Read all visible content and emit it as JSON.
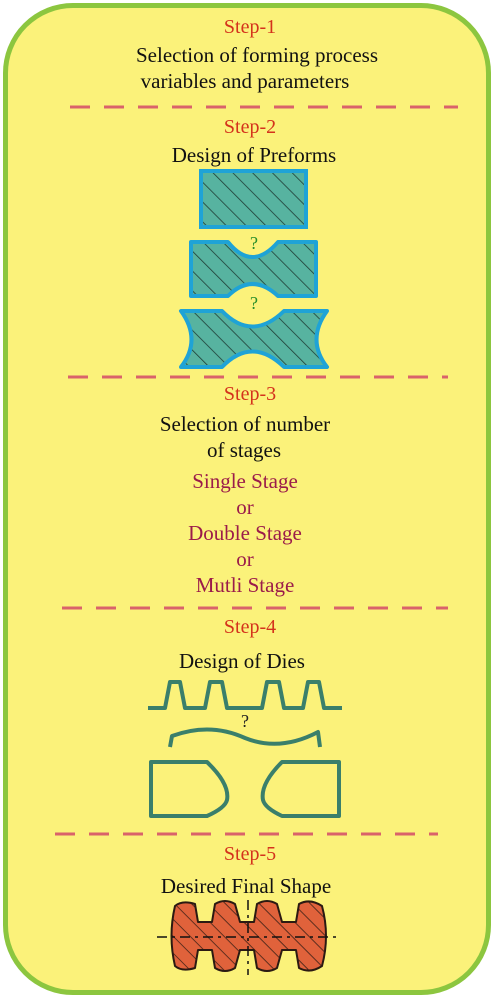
{
  "colors": {
    "panel_fill": "#fbf27a",
    "panel_border": "#8cc63f",
    "step_heading": "#d4321c",
    "option_text": "#9b1b4a",
    "divider": "#d9636a",
    "preform_fill": "#57b3a0",
    "preform_border": "#1fa3d6",
    "die_stroke": "#3a7f6b",
    "final_fill": "#e0623b"
  },
  "steps": [
    {
      "heading": "Step-1",
      "lines": [
        "Selection of forming process",
        "variables and parameters"
      ]
    },
    {
      "heading": "Step-2",
      "lines": [
        "Design of Preforms"
      ],
      "question_marks": [
        "?",
        "?"
      ]
    },
    {
      "heading": "Step-3",
      "lines": [
        "Selection of number",
        "of stages"
      ],
      "options": [
        "Single Stage",
        "or",
        "Double Stage",
        "or",
        "Mutli Stage"
      ]
    },
    {
      "heading": "Step-4",
      "lines": [
        "Design of Dies"
      ],
      "question_mark": "?"
    },
    {
      "heading": "Step-5",
      "lines": [
        "Desired Final Shape"
      ]
    }
  ]
}
